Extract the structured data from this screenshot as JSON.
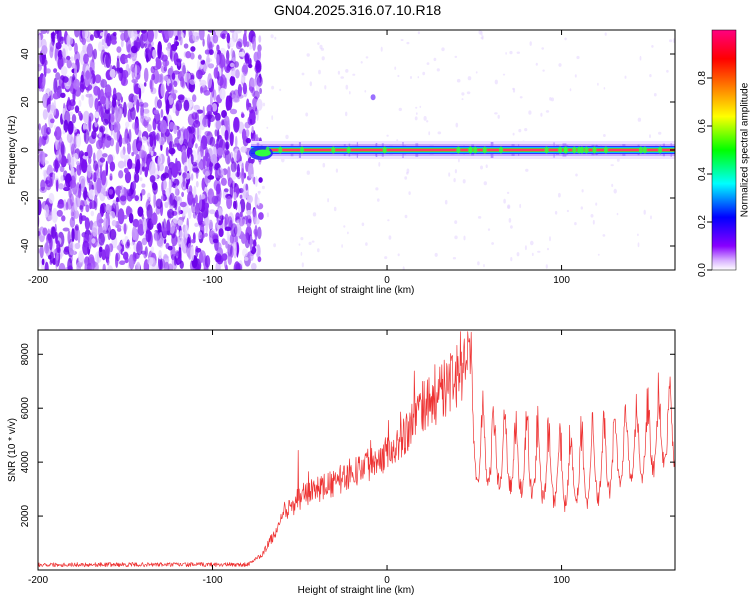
{
  "title": "GN04.2025.316.07.10.R18",
  "chart_data": [
    {
      "type": "heatmap",
      "title": "GN04.2025.316.07.10.R18",
      "xlabel": "Height of straight line (km)",
      "ylabel": "Frequency (Hz)",
      "xlim": [
        -200,
        165
      ],
      "ylim": [
        -50,
        50
      ],
      "xticks": [
        -200,
        -100,
        0,
        100
      ],
      "yticks": [
        -40,
        -20,
        0,
        20,
        40
      ],
      "noise_region_x": [
        -200,
        -78
      ],
      "carrier_frequency": 0,
      "carrier_start_x": -78,
      "spur": {
        "x": -8,
        "y": 22
      },
      "colorbar": {
        "label": "Normalized spectral amplitude",
        "range": [
          0,
          1
        ],
        "ticks": [
          0.0,
          0.2,
          0.4,
          0.6,
          0.8
        ],
        "tick_labels": [
          "0.0",
          "0.2",
          "0.4",
          "0.6",
          "0.8"
        ],
        "colors": [
          "#ffffff",
          "#8800ff",
          "#0000ff",
          "#00ffff",
          "#00ff00",
          "#ffff00",
          "#ff8000",
          "#ff0000",
          "#ff0080"
        ]
      }
    },
    {
      "type": "line",
      "xlabel": "Height of straight line (km)",
      "ylabel": "SNR (10 * v/v)",
      "xlim": [
        -200,
        165
      ],
      "ylim": [
        0,
        8900
      ],
      "xticks": [
        -200,
        -100,
        0,
        100
      ],
      "yticks": [
        2000,
        4000,
        6000,
        8000
      ],
      "color": "#ee3333",
      "series": [
        {
          "name": "SNR",
          "x": [
            -200,
            -150,
            -100,
            -80,
            -72,
            -65,
            -58,
            -50,
            -40,
            -30,
            -20,
            -10,
            0,
            10,
            20,
            30,
            40,
            45,
            47,
            48,
            50,
            60,
            70,
            80,
            90,
            100,
            110,
            120,
            130,
            140,
            150,
            160,
            165
          ],
          "values": [
            200,
            200,
            200,
            200,
            500,
            1200,
            2000,
            2500,
            2800,
            3000,
            3400,
            3700,
            4100,
            4700,
            5600,
            6100,
            6700,
            7000,
            7400,
            4500,
            4000,
            3900,
            3700,
            3500,
            3300,
            3200,
            3200,
            3400,
            3700,
            4100,
            4400,
            4600,
            4700
          ]
        }
      ]
    }
  ]
}
